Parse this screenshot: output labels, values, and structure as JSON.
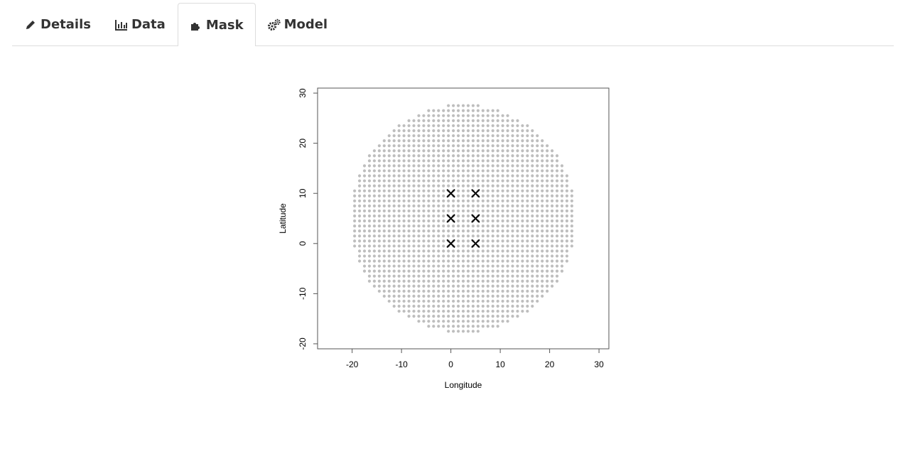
{
  "tabs": [
    {
      "label": "Details",
      "icon": "pencil-icon",
      "active": false
    },
    {
      "label": "Data",
      "icon": "bar-chart-icon",
      "active": false
    },
    {
      "label": "Mask",
      "icon": "puzzle-icon",
      "active": true
    },
    {
      "label": "Model",
      "icon": "gears-icon",
      "active": false
    }
  ],
  "chart_data": {
    "type": "scatter",
    "title": "",
    "xlabel": "Longitude",
    "ylabel": "Latitude",
    "xlim": [
      -27,
      32
    ],
    "ylim": [
      -21,
      31
    ],
    "xticks": [
      -20,
      -10,
      0,
      10,
      20,
      30
    ],
    "yticks": [
      -20,
      -10,
      0,
      10,
      20,
      30
    ],
    "grid": false,
    "mask": {
      "description_units": "data",
      "center": [
        2.5,
        5
      ],
      "radius": 22.5,
      "x_range": [
        -19.5,
        24.5
      ],
      "y_range": [
        -19.5,
        29.5
      ],
      "spacing": 1,
      "color": "#bebebe"
    },
    "traps": {
      "x": [
        0,
        5,
        0,
        5,
        0,
        5
      ],
      "y": [
        10,
        10,
        5,
        5,
        0,
        0
      ],
      "marker": "x",
      "color": "#000000"
    }
  }
}
